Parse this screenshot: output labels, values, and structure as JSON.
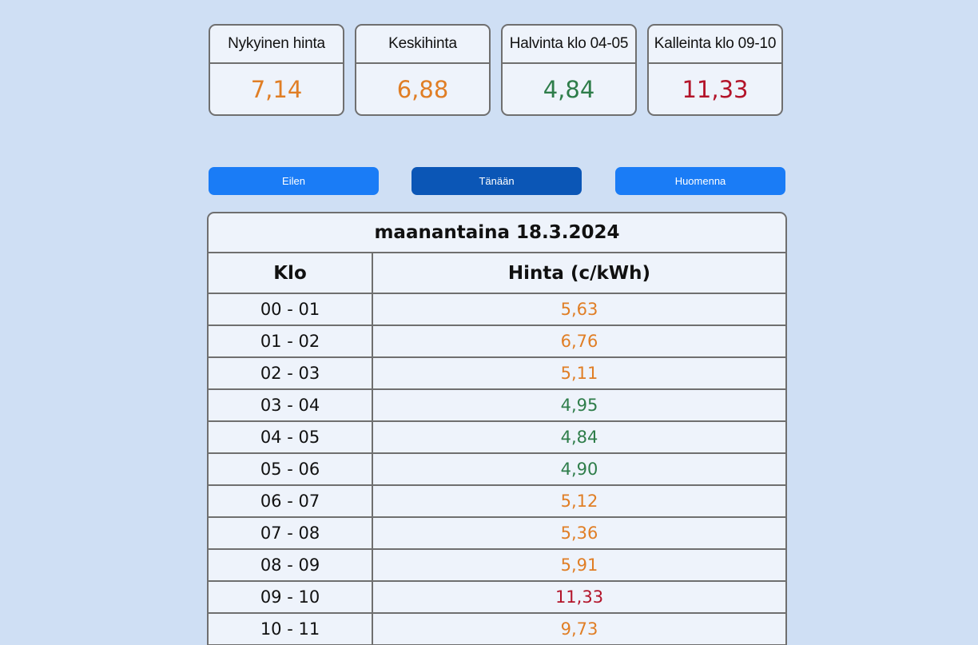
{
  "colors": {
    "orange": "#e07e25",
    "green": "#2e7d4a",
    "red": "#b3142a",
    "button": "#1a7cf6",
    "button_active": "#0b56b6"
  },
  "cards": [
    {
      "label": "Nykyinen hinta",
      "value": "7,14",
      "level": "orange"
    },
    {
      "label": "Keskihinta",
      "value": "6,88",
      "level": "orange"
    },
    {
      "label": "Halvinta klo 04-05",
      "value": "4,84",
      "level": "green"
    },
    {
      "label": "Kalleinta klo 09-10",
      "value": "11,33",
      "level": "red"
    }
  ],
  "days": {
    "yesterday": "Eilen",
    "today": "Tänään",
    "tomorrow": "Huomenna",
    "active": "today"
  },
  "table": {
    "title": "maanantaina 18.3.2024",
    "col_hour": "Klo",
    "col_price": "Hinta (c/kWh)",
    "rows": [
      {
        "hour": "00 - 01",
        "price": "5,63",
        "level": "orange"
      },
      {
        "hour": "01 - 02",
        "price": "6,76",
        "level": "orange"
      },
      {
        "hour": "02 - 03",
        "price": "5,11",
        "level": "orange"
      },
      {
        "hour": "03 - 04",
        "price": "4,95",
        "level": "green"
      },
      {
        "hour": "04 - 05",
        "price": "4,84",
        "level": "green"
      },
      {
        "hour": "05 - 06",
        "price": "4,90",
        "level": "green"
      },
      {
        "hour": "06 - 07",
        "price": "5,12",
        "level": "orange"
      },
      {
        "hour": "07 - 08",
        "price": "5,36",
        "level": "orange"
      },
      {
        "hour": "08 - 09",
        "price": "5,91",
        "level": "orange"
      },
      {
        "hour": "09 - 10",
        "price": "11,33",
        "level": "red"
      },
      {
        "hour": "10 - 11",
        "price": "9,73",
        "level": "orange"
      }
    ]
  }
}
